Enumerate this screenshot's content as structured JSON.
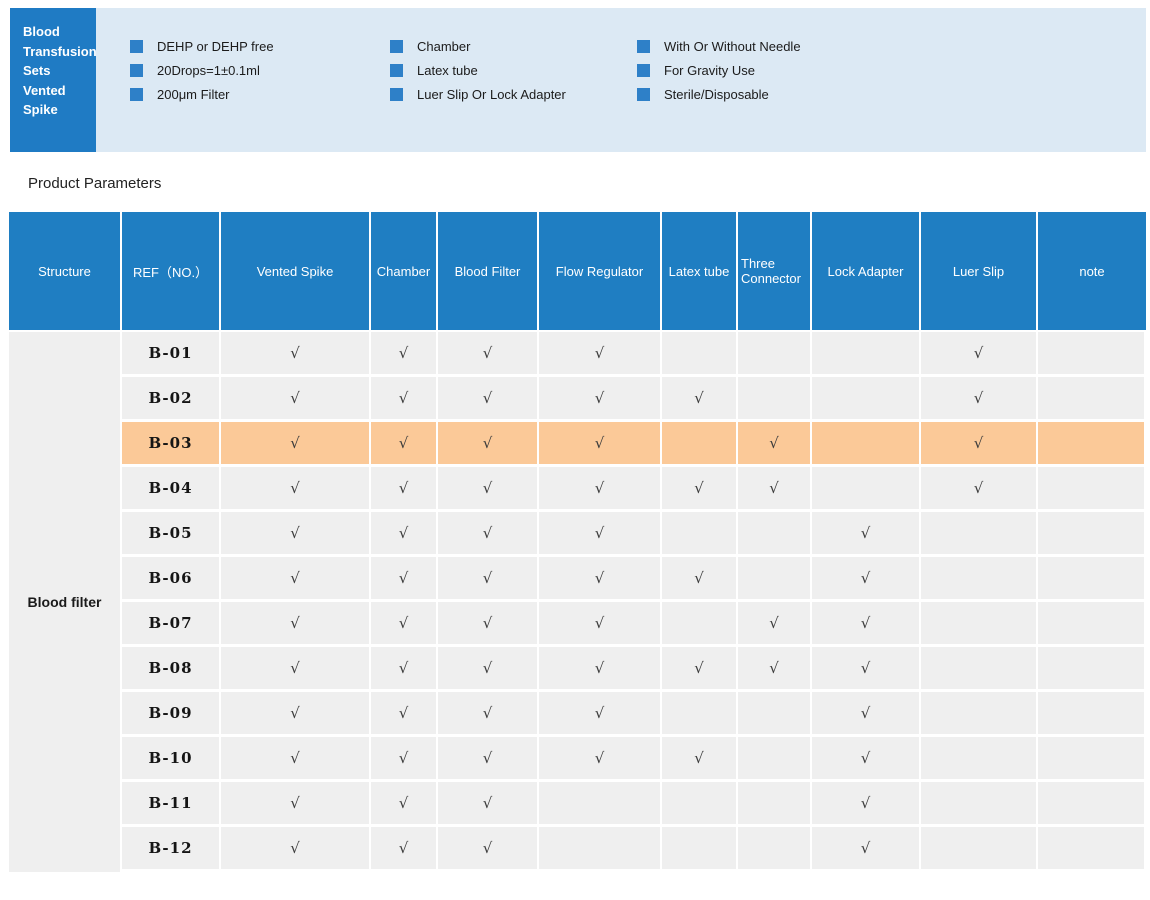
{
  "colors": {
    "panel_blue": "#1f7bc4",
    "banner_bg": "#dce9f4",
    "bullet_blue": "#2e80c8",
    "table_header_blue": "#1f7ec2",
    "row_gray": "#efefef",
    "highlight_orange": "#fbc998",
    "check_color": "#3c3c3c"
  },
  "banner": {
    "title_lines": [
      "Blood",
      "Transfusion",
      "Sets",
      "Vented",
      "Spike"
    ],
    "feature_columns": [
      {
        "items": [
          "DEHP or DEHP free",
          "20Drops=1±0.1ml",
          "200μm Filter"
        ]
      },
      {
        "items": [
          "Chamber",
          "Latex tube",
          "Luer Slip Or Lock Adapter"
        ]
      },
      {
        "items": [
          "With Or Without Needle",
          "For Gravity Use",
          "Sterile/Disposable"
        ]
      }
    ]
  },
  "section": {
    "title": "Product Parameters"
  },
  "table": {
    "structure_label": "Blood filter",
    "check_glyph": "√",
    "columns": [
      "Structure",
      "REF（NO.）",
      "Vented Spike",
      "Chamber",
      "Blood Filter",
      "Flow Regulator",
      "Latex tube",
      "Three Connector",
      "Lock Adapter",
      "Luer Slip",
      "note"
    ],
    "check_columns": [
      "Vented Spike",
      "Chamber",
      "Blood Filter",
      "Flow Regulator",
      "Latex tube",
      "Three Connector",
      "Lock Adapter",
      "Luer Slip",
      "note"
    ],
    "rows": [
      {
        "ref": "B-01",
        "checks": [
          1,
          1,
          1,
          1,
          0,
          0,
          0,
          1,
          0
        ],
        "highlight": false
      },
      {
        "ref": "B-02",
        "checks": [
          1,
          1,
          1,
          1,
          1,
          0,
          0,
          1,
          0
        ],
        "highlight": false
      },
      {
        "ref": "B-03",
        "checks": [
          1,
          1,
          1,
          1,
          0,
          1,
          0,
          1,
          0
        ],
        "highlight": true
      },
      {
        "ref": "B-04",
        "checks": [
          1,
          1,
          1,
          1,
          1,
          1,
          0,
          1,
          0
        ],
        "highlight": false
      },
      {
        "ref": "B-05",
        "checks": [
          1,
          1,
          1,
          1,
          0,
          0,
          1,
          0,
          0
        ],
        "highlight": false
      },
      {
        "ref": "B-06",
        "checks": [
          1,
          1,
          1,
          1,
          1,
          0,
          1,
          0,
          0
        ],
        "highlight": false
      },
      {
        "ref": "B-07",
        "checks": [
          1,
          1,
          1,
          1,
          0,
          1,
          1,
          0,
          0
        ],
        "highlight": false
      },
      {
        "ref": "B-08",
        "checks": [
          1,
          1,
          1,
          1,
          1,
          1,
          1,
          0,
          0
        ],
        "highlight": false
      },
      {
        "ref": "B-09",
        "checks": [
          1,
          1,
          1,
          1,
          0,
          0,
          1,
          0,
          0
        ],
        "highlight": false
      },
      {
        "ref": "B-10",
        "checks": [
          1,
          1,
          1,
          1,
          1,
          0,
          1,
          0,
          0
        ],
        "highlight": false
      },
      {
        "ref": "B-11",
        "checks": [
          1,
          1,
          1,
          0,
          0,
          0,
          1,
          0,
          0
        ],
        "highlight": false
      },
      {
        "ref": "B-12",
        "checks": [
          1,
          1,
          1,
          0,
          0,
          0,
          1,
          0,
          0
        ],
        "highlight": false
      }
    ]
  }
}
